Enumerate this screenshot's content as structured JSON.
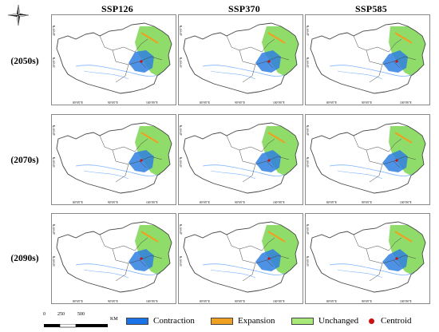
{
  "columns": [
    "SSP126",
    "SSP370",
    "SSP585"
  ],
  "rows": [
    "(2050s)",
    "(2070s)",
    "(2090s)"
  ],
  "lat_labels": [
    "40°0'0\"N",
    "30°0'0\"N"
  ],
  "lon_labels": [
    "80°0'0\"E",
    "90°0'0\"E",
    "100°0'0\"E"
  ],
  "compass": {
    "letter": "N"
  },
  "scale": {
    "ticks": [
      "0",
      "250",
      "500"
    ],
    "unit": "KM"
  },
  "legend": [
    {
      "label": "Contraction",
      "color": "#1a73e8"
    },
    {
      "label": "Expansion",
      "color": "#f0a020"
    },
    {
      "label": "Unchanged",
      "color": "#a8e878"
    },
    {
      "label": "Centroid",
      "color": "#cc1111"
    }
  ],
  "colors": {
    "outline": "#444444",
    "rivers": "#7fb4ff",
    "green": "#8fdc6a",
    "blue": "#2f7fe0"
  }
}
